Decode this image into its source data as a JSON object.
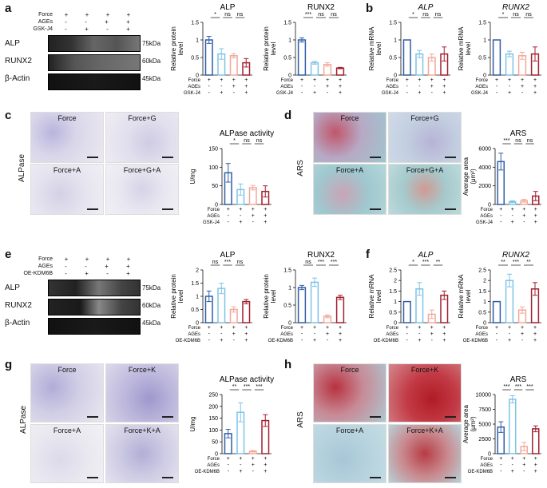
{
  "panels": {
    "a": {
      "label": "a",
      "treatment_rows": [
        "Force",
        "AGEs",
        "GSK-J4"
      ],
      "treatment_signs": [
        [
          "+",
          "+",
          "+",
          "+"
        ],
        [
          "-",
          "-",
          "+",
          "+"
        ],
        [
          "-",
          "+",
          "-",
          "+"
        ]
      ],
      "blot_rows": [
        "ALP",
        "RUNX2",
        "β-Actin"
      ],
      "blot_kda": [
        "75kDa",
        "60kDa",
        "45kDa"
      ]
    },
    "b": {
      "label": "b"
    },
    "c": {
      "label": "c",
      "side_label": "ALPase",
      "images": [
        "Force",
        "Force+G",
        "Force+A",
        "Force+G+A"
      ]
    },
    "d": {
      "label": "d",
      "side_label": "ARS",
      "images": [
        "Force",
        "Force+G",
        "Force+A",
        "Force+G+A"
      ]
    },
    "e": {
      "label": "e",
      "treatment_rows": [
        "Force",
        "AGEs",
        "OE-KDM6B"
      ],
      "treatment_signs": [
        [
          "+",
          "+",
          "+",
          "+"
        ],
        [
          "-",
          "-",
          "+",
          "+"
        ],
        [
          "-",
          "+",
          "-",
          "+"
        ]
      ],
      "blot_rows": [
        "ALP",
        "RUNX2",
        "β-Actin"
      ],
      "blot_kda": [
        "75kDa",
        "60kDa",
        "45kDa"
      ]
    },
    "f": {
      "label": "f"
    },
    "g": {
      "label": "g",
      "side_label": "ALPase",
      "images": [
        "Force",
        "Force+K",
        "Force+A",
        "Force+K+A"
      ]
    },
    "h": {
      "label": "h",
      "side_label": "ARS",
      "images": [
        "Force",
        "Force+K",
        "Force+A",
        "Force+K+A"
      ]
    }
  },
  "colors": {
    "c1": "#2f5ea8",
    "c2": "#7ec3e6",
    "c3": "#f2a89a",
    "c4": "#a3202f"
  },
  "chart_data": [
    {
      "id": "a1",
      "type": "bar",
      "title": "ALP",
      "ylabel": "Relative protein\nlevel",
      "ylim": [
        0,
        1.5
      ],
      "yticks": [
        0.0,
        0.5,
        1.0,
        1.5
      ],
      "values": [
        1.0,
        0.6,
        0.55,
        0.35
      ],
      "errors": [
        0.1,
        0.15,
        0.06,
        0.12
      ],
      "sig": [
        "*",
        "ns",
        "ns"
      ],
      "rows": [
        "Force",
        "AGEs",
        "GSK-J4"
      ],
      "signs": [
        [
          "+",
          "+",
          "+",
          "+"
        ],
        [
          "-",
          "-",
          "+",
          "+"
        ],
        [
          "-",
          "+",
          "-",
          "+"
        ]
      ],
      "title_italic": false
    },
    {
      "id": "a2",
      "type": "bar",
      "title": "RUNX2",
      "ylabel": "Relative protein\nlevel",
      "ylim": [
        0,
        1.5
      ],
      "yticks": [
        0.0,
        0.5,
        1.0,
        1.5
      ],
      "values": [
        1.0,
        0.35,
        0.3,
        0.2
      ],
      "errors": [
        0.06,
        0.04,
        0.05,
        0.02
      ],
      "sig": [
        "***",
        "ns",
        "ns"
      ],
      "rows": [
        "Force",
        "AGEs",
        "GSK-J4"
      ],
      "signs": [
        [
          "+",
          "+",
          "+",
          "+"
        ],
        [
          "-",
          "-",
          "+",
          "+"
        ],
        [
          "-",
          "+",
          "-",
          "+"
        ]
      ],
      "title_italic": false
    },
    {
      "id": "b1",
      "type": "bar",
      "title": "ALP",
      "ylabel": "Relative mRNA\nlevel",
      "ylim": [
        0,
        1.5
      ],
      "yticks": [
        0.0,
        0.5,
        1.0,
        1.5
      ],
      "values": [
        1.0,
        0.6,
        0.5,
        0.6
      ],
      "errors": [
        0.0,
        0.1,
        0.1,
        0.2
      ],
      "sig": [
        "*",
        "ns",
        "ns"
      ],
      "rows": [
        "Force",
        "AGEs",
        "GSK-J4"
      ],
      "signs": [
        [
          "+",
          "+",
          "+",
          "+"
        ],
        [
          "-",
          "-",
          "+",
          "+"
        ],
        [
          "-",
          "+",
          "-",
          "+"
        ]
      ],
      "title_italic": true
    },
    {
      "id": "b2",
      "type": "bar",
      "title": "RUNX2",
      "ylabel": "Relative mRNA\nlevel",
      "ylim": [
        0,
        1.5
      ],
      "yticks": [
        0.0,
        0.5,
        1.0,
        1.5
      ],
      "values": [
        1.0,
        0.6,
        0.55,
        0.6
      ],
      "errors": [
        0.0,
        0.08,
        0.1,
        0.2
      ],
      "sig": [
        "*",
        "ns",
        "ns"
      ],
      "rows": [
        "Force",
        "AGEs",
        "GSK-J4"
      ],
      "signs": [
        [
          "+",
          "+",
          "+",
          "+"
        ],
        [
          "-",
          "-",
          "+",
          "+"
        ],
        [
          "-",
          "+",
          "-",
          "+"
        ]
      ],
      "title_italic": true
    },
    {
      "id": "c1",
      "type": "bar",
      "title": "ALPase activity",
      "ylabel": "U/mg",
      "ylim": [
        0,
        150
      ],
      "yticks": [
        0,
        50,
        100,
        150
      ],
      "values": [
        85,
        40,
        45,
        35
      ],
      "errors": [
        25,
        15,
        6,
        15
      ],
      "sig": [
        "*",
        "ns",
        "ns"
      ],
      "rows": [
        "Force",
        "AGEs",
        "GSK-J4"
      ],
      "signs": [
        [
          "+",
          "+",
          "+",
          "+"
        ],
        [
          "-",
          "-",
          "+",
          "+"
        ],
        [
          "-",
          "+",
          "-",
          "+"
        ]
      ],
      "title_italic": false
    },
    {
      "id": "d1",
      "type": "bar",
      "title": "ARS",
      "ylabel": "Average area\n(μm²)",
      "ylim": [
        0,
        6000
      ],
      "yticks": [
        0,
        2000,
        4000,
        6000
      ],
      "values": [
        4600,
        300,
        400,
        900
      ],
      "errors": [
        900,
        100,
        150,
        500
      ],
      "sig": [
        "***",
        "ns",
        "ns"
      ],
      "rows": [
        "Force",
        "AGEs",
        "GSK-J4"
      ],
      "signs": [
        [
          "+",
          "+",
          "+",
          "+"
        ],
        [
          "-",
          "-",
          "+",
          "+"
        ],
        [
          "-",
          "+",
          "-",
          "+"
        ]
      ],
      "title_italic": false
    },
    {
      "id": "e1",
      "type": "bar",
      "title": "ALP",
      "ylabel": "Relative protein\nlevel",
      "ylim": [
        0,
        2.0
      ],
      "yticks": [
        0.0,
        0.5,
        1.0,
        1.5,
        2.0
      ],
      "values": [
        1.0,
        1.3,
        0.5,
        0.8
      ],
      "errors": [
        0.2,
        0.2,
        0.1,
        0.08
      ],
      "sig": [
        "ns",
        "***",
        "ns"
      ],
      "rows": [
        "Force",
        "AGEs",
        "OE-KDM6B"
      ],
      "signs": [
        [
          "+",
          "+",
          "+",
          "+"
        ],
        [
          "-",
          "-",
          "+",
          "+"
        ],
        [
          "-",
          "+",
          "-",
          "+"
        ]
      ],
      "title_italic": false
    },
    {
      "id": "e2",
      "type": "bar",
      "title": "RUNX2",
      "ylabel": "Relative protein\nlevel",
      "ylim": [
        0,
        1.5
      ],
      "yticks": [
        0.0,
        0.5,
        1.0,
        1.5
      ],
      "values": [
        1.0,
        1.15,
        0.18,
        0.72
      ],
      "errors": [
        0.06,
        0.12,
        0.04,
        0.06
      ],
      "sig": [
        "ns",
        "***",
        "***"
      ],
      "rows": [
        "Force",
        "AGEs",
        "OE-KDM6B"
      ],
      "signs": [
        [
          "+",
          "+",
          "+",
          "+"
        ],
        [
          "-",
          "-",
          "+",
          "+"
        ],
        [
          "-",
          "+",
          "-",
          "+"
        ]
      ],
      "title_italic": false
    },
    {
      "id": "f1",
      "type": "bar",
      "title": "ALP",
      "ylabel": "Relative mRNA\nlevel",
      "ylim": [
        0,
        2.5
      ],
      "yticks": [
        0.0,
        0.5,
        1.0,
        1.5,
        2.0,
        2.5
      ],
      "values": [
        1.0,
        1.6,
        0.4,
        1.3
      ],
      "errors": [
        0.0,
        0.3,
        0.2,
        0.2
      ],
      "sig": [
        "*",
        "***",
        "**"
      ],
      "rows": [
        "Force",
        "AGEs",
        "OE-KDM6B"
      ],
      "signs": [
        [
          "+",
          "+",
          "+",
          "+"
        ],
        [
          "-",
          "-",
          "+",
          "+"
        ],
        [
          "-",
          "+",
          "-",
          "+"
        ]
      ],
      "title_italic": true
    },
    {
      "id": "f2",
      "type": "bar",
      "title": "RUNX2",
      "ylabel": "Relative mRNA\nlevel",
      "ylim": [
        0,
        2.5
      ],
      "yticks": [
        0.0,
        0.5,
        1.0,
        1.5,
        2.0,
        2.5
      ],
      "values": [
        1.0,
        2.0,
        0.6,
        1.6
      ],
      "errors": [
        0.0,
        0.3,
        0.15,
        0.3
      ],
      "sig": [
        "**",
        "***",
        "**"
      ],
      "rows": [
        "Force",
        "AGEs",
        "OE-KDM6B"
      ],
      "signs": [
        [
          "+",
          "+",
          "+",
          "+"
        ],
        [
          "-",
          "-",
          "+",
          "+"
        ],
        [
          "-",
          "+",
          "-",
          "+"
        ]
      ],
      "title_italic": true
    },
    {
      "id": "g1",
      "type": "bar",
      "title": "ALPase activity",
      "ylabel": "U/mg",
      "ylim": [
        0,
        250
      ],
      "yticks": [
        0,
        50,
        100,
        150,
        200,
        250
      ],
      "values": [
        85,
        175,
        10,
        140
      ],
      "errors": [
        18,
        40,
        3,
        25
      ],
      "sig": [
        "**",
        "***",
        "***"
      ],
      "rows": [
        "Force",
        "AGEs",
        "OE-KDM6B"
      ],
      "signs": [
        [
          "+",
          "+",
          "+",
          "+"
        ],
        [
          "-",
          "-",
          "+",
          "+"
        ],
        [
          "-",
          "+",
          "-",
          "+"
        ]
      ],
      "title_italic": false
    },
    {
      "id": "h1",
      "type": "bar",
      "title": "ARS",
      "ylabel": "Average area\n(μm²)",
      "ylim": [
        0,
        10000
      ],
      "yticks": [
        0,
        2500,
        5000,
        7500,
        10000
      ],
      "values": [
        4500,
        9200,
        1200,
        4200
      ],
      "errors": [
        900,
        600,
        700,
        500
      ],
      "sig": [
        "***",
        "***",
        "***"
      ],
      "rows": [
        "Force",
        "AGEs",
        "OE-KDM6B"
      ],
      "signs": [
        [
          "+",
          "+",
          "+",
          "+"
        ],
        [
          "-",
          "-",
          "+",
          "+"
        ],
        [
          "-",
          "+",
          "-",
          "+"
        ]
      ],
      "title_italic": false
    }
  ]
}
